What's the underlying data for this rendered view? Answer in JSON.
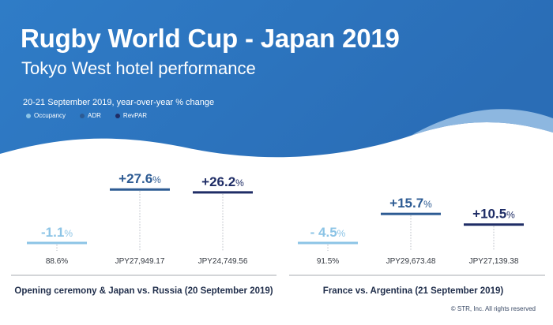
{
  "header": {
    "title": "Rugby World Cup - Japan 2019",
    "subtitle": "Tokyo West hotel performance",
    "note": "20-21 September 2019, year-over-year % change"
  },
  "legend": [
    {
      "label": "Occupancy",
      "color": "#8cc4e6"
    },
    {
      "label": "ADR",
      "color": "#2d5b93"
    },
    {
      "label": "RevPAR",
      "color": "#1f2d66"
    }
  ],
  "colors": {
    "header_blue": "#2e76bf",
    "occupancy": "#8cc4e6",
    "adr": "#2d5b93",
    "revpar": "#1f2d66",
    "footer_text": "#1f2d4a"
  },
  "chart_data": [
    {
      "type": "bar",
      "title": "Opening ceremony & Japan vs. Russia (20 September 2019)",
      "series": [
        "Occupancy",
        "ADR",
        "RevPAR"
      ],
      "values": [
        -1.1,
        27.6,
        26.2
      ],
      "value_labels": [
        "-1.1",
        "+27.6",
        "+26.2"
      ],
      "unit": "%",
      "actuals": [
        "88.6%",
        "JPY27,949.17",
        "JPY24,749.56"
      ]
    },
    {
      "type": "bar",
      "title": "France vs. Argentina (21 September 2019)",
      "series": [
        "Occupancy",
        "ADR",
        "RevPAR"
      ],
      "values": [
        -4.5,
        15.7,
        10.5
      ],
      "value_labels": [
        "- 4.5",
        "+15.7",
        "+10.5"
      ],
      "unit": "%",
      "actuals": [
        "91.5%",
        "JPY29,673.48",
        "JPY27,139.38"
      ]
    }
  ],
  "footer": {
    "copyright": "© STR, Inc. All rights reserved"
  }
}
